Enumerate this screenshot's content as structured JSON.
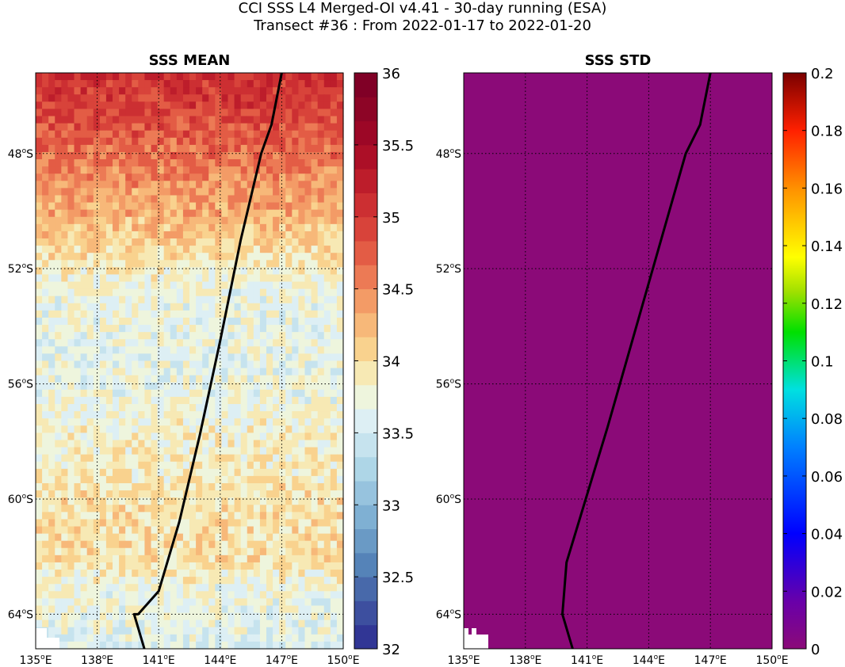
{
  "figure": {
    "title_line1": "CCI SSS L4 Merged-OI v4.41 - 30-day running (ESA)",
    "title_line2": "Transect #36 : From 2022-01-17 to 2022-01-20"
  },
  "chart_data": [
    {
      "type": "heatmap",
      "title": "SSS MEAN",
      "x_ticks": [
        "135°E",
        "138°E",
        "141°E",
        "144°E",
        "147°E",
        "150°E"
      ],
      "x_tick_values": [
        135,
        138,
        141,
        144,
        147,
        150
      ],
      "y_ticks": [
        "48°S",
        "52°S",
        "56°S",
        "60°S",
        "64°S"
      ],
      "y_tick_values": [
        -48,
        -52,
        -56,
        -60,
        -64
      ],
      "xlim": [
        135,
        150
      ],
      "ylim": [
        -65.2,
        -45.2
      ],
      "grid": true,
      "colormap": "RdYlBu_r (discrete, 24 levels)",
      "colorbar": {
        "range": [
          32,
          36
        ],
        "tick_labels": [
          "32",
          "32.5",
          "33",
          "33.5",
          "34",
          "34.5",
          "35",
          "35.5",
          "36"
        ],
        "tick_values": [
          32,
          32.5,
          33,
          33.5,
          34,
          34.5,
          35,
          35.5,
          36
        ]
      },
      "field_profile": {
        "latitudes": [
          -45.2,
          -47,
          -48.5,
          -50,
          -51.5,
          -52.5,
          -55,
          -58,
          -60,
          -62,
          -63,
          -65.2
        ],
        "typical_salinity": [
          35.1,
          34.85,
          34.55,
          34.3,
          34.0,
          33.75,
          33.65,
          33.8,
          33.95,
          34.0,
          33.75,
          33.6
        ]
      },
      "transect_lon": [
        147.0,
        146.5,
        146.0,
        145.0,
        144.0,
        143.0,
        142.0,
        141.0,
        140.0,
        139.8,
        140.3
      ],
      "transect_lat": [
        -45.2,
        -47.0,
        -48.0,
        -51.0,
        -54.5,
        -57.8,
        -60.8,
        -63.2,
        -64.0,
        -64.0,
        -65.2
      ],
      "transect_color": "#000000"
    },
    {
      "type": "heatmap",
      "title": "SSS STD",
      "x_ticks": [
        "135°E",
        "138°E",
        "141°E",
        "144°E",
        "147°E",
        "150°E"
      ],
      "x_tick_values": [
        135,
        138,
        141,
        144,
        147,
        150
      ],
      "y_ticks": [
        "48°S",
        "52°S",
        "56°S",
        "60°S",
        "64°S"
      ],
      "y_tick_values": [
        -48,
        -52,
        -56,
        -60,
        -64
      ],
      "xlim": [
        135,
        150
      ],
      "ylim": [
        -65.2,
        -45.2
      ],
      "grid": true,
      "colormap": "jet-like (purple to dark red)",
      "field_value": 0,
      "field_color": "#8b0a78",
      "colorbar": {
        "range": [
          0,
          0.2
        ],
        "tick_labels": [
          "0",
          "0.02",
          "0.04",
          "0.06",
          "0.08",
          "0.1",
          "0.12",
          "0.14",
          "0.16",
          "0.18",
          "0.2"
        ],
        "tick_values": [
          0,
          0.02,
          0.04,
          0.06,
          0.08,
          0.1,
          0.12,
          0.14,
          0.16,
          0.18,
          0.2
        ]
      },
      "transect_lon": [
        147.0,
        146.5,
        145.8,
        144.0,
        142.0,
        140.0,
        139.8,
        140.3
      ],
      "transect_lat": [
        -45.2,
        -47.0,
        -48.0,
        -52.5,
        -57.5,
        -62.2,
        -64.0,
        -65.2
      ],
      "transect_color": "#000000"
    }
  ]
}
